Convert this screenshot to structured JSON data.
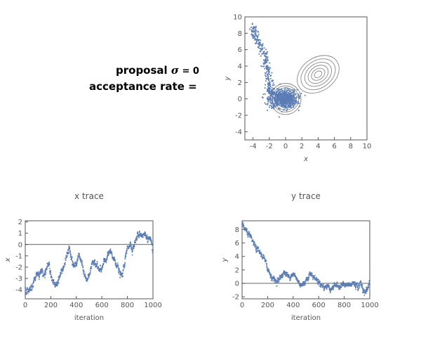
{
  "params": {
    "sigma_prefix": "proposal ",
    "sigma_symbol": "σ",
    "sigma_rest": " = 0",
    "acceptance": "acceptance rate ="
  },
  "colors": {
    "points": "#5b7db5",
    "contour": "#8a8a8a",
    "axis": "#555555",
    "ref_line": "#333333"
  },
  "chart_data": [
    {
      "id": "scatter",
      "type": "scatter",
      "title": "",
      "xlabel": "x",
      "ylabel": "y",
      "xlim": [
        -5,
        10
      ],
      "ylim": [
        -5,
        10
      ],
      "xticks": [
        -4,
        -2,
        0,
        2,
        4,
        6,
        8,
        10
      ],
      "yticks": [
        -4,
        -2,
        0,
        2,
        4,
        6,
        8,
        10
      ],
      "contours": [
        {
          "cx": 0,
          "cy": 0,
          "rx": [
            0.35,
            0.6,
            0.85,
            1.1,
            1.35,
            1.6,
            1.9
          ]
        },
        {
          "cx": 4,
          "cy": 3,
          "rx": [
            0.5,
            0.9,
            1.35,
            1.8,
            2.3,
            2.8
          ],
          "rotate": -35,
          "ratio": 0.72
        }
      ],
      "points_description": "chain starts near (-4, 9), descends along x≈-3..-2, then concentrates around (-1..1, -1..1)",
      "path_anchors": [
        {
          "iter": 0,
          "x": -4.0,
          "y": 8.8
        },
        {
          "iter": 60,
          "x": -3.6,
          "y": 7.3
        },
        {
          "iter": 120,
          "x": -2.6,
          "y": 5.5
        },
        {
          "iter": 180,
          "x": -2.2,
          "y": 3.5
        },
        {
          "iter": 230,
          "x": -2.0,
          "y": 1.5
        },
        {
          "iter": 300,
          "x": -1.5,
          "y": 0.3
        },
        {
          "iter": 1000,
          "x": 0.0,
          "y": 0.0
        }
      ]
    },
    {
      "id": "x-trace",
      "type": "scatter",
      "title": "x trace",
      "xlabel": "iteration",
      "ylabel": "x",
      "xlim": [
        0,
        1000
      ],
      "ylim": [
        -4.8,
        2.1
      ],
      "xticks": [
        0,
        200,
        400,
        600,
        800,
        1000
      ],
      "yticks": [
        -4,
        -3,
        -2,
        -1,
        0,
        1,
        2
      ],
      "hline": 0,
      "anchors": [
        [
          0,
          -3.9
        ],
        [
          30,
          -4.2
        ],
        [
          50,
          -3.8
        ],
        [
          70,
          -3.2
        ],
        [
          90,
          -2.5
        ],
        [
          110,
          -2.6
        ],
        [
          130,
          -2.3
        ],
        [
          150,
          -2.6
        ],
        [
          170,
          -2.0
        ],
        [
          190,
          -1.8
        ],
        [
          210,
          -3.2
        ],
        [
          230,
          -3.6
        ],
        [
          250,
          -3.4
        ],
        [
          270,
          -2.8
        ],
        [
          290,
          -2.2
        ],
        [
          310,
          -1.7
        ],
        [
          330,
          -0.8
        ],
        [
          345,
          -0.3
        ],
        [
          360,
          -1.2
        ],
        [
          380,
          -2.0
        ],
        [
          400,
          -1.7
        ],
        [
          420,
          -0.9
        ],
        [
          440,
          -1.6
        ],
        [
          460,
          -2.5
        ],
        [
          480,
          -3.2
        ],
        [
          500,
          -2.6
        ],
        [
          520,
          -2.0
        ],
        [
          540,
          -1.4
        ],
        [
          560,
          -1.8
        ],
        [
          580,
          -2.3
        ],
        [
          600,
          -2.2
        ],
        [
          620,
          -1.5
        ],
        [
          640,
          -1.2
        ],
        [
          660,
          -0.6
        ],
        [
          680,
          -1.0
        ],
        [
          700,
          -1.4
        ],
        [
          720,
          -1.8
        ],
        [
          740,
          -2.6
        ],
        [
          760,
          -2.8
        ],
        [
          780,
          -1.5
        ],
        [
          800,
          -0.3
        ],
        [
          820,
          0.1
        ],
        [
          840,
          -0.4
        ],
        [
          860,
          0.2
        ],
        [
          880,
          0.8
        ],
        [
          900,
          1.0
        ],
        [
          920,
          0.8
        ],
        [
          940,
          0.9
        ],
        [
          960,
          0.6
        ],
        [
          980,
          0.3
        ],
        [
          1000,
          -0.6
        ]
      ]
    },
    {
      "id": "y-trace",
      "type": "scatter",
      "title": "y trace",
      "xlabel": "iteration",
      "ylabel": "y",
      "xlim": [
        0,
        1000
      ],
      "ylim": [
        -2.3,
        9.3
      ],
      "xticks": [
        0,
        200,
        400,
        600,
        800,
        1000
      ],
      "yticks": [
        -2,
        0,
        2,
        4,
        6,
        8
      ],
      "hline": 0,
      "anchors": [
        [
          0,
          8.8
        ],
        [
          30,
          7.8
        ],
        [
          60,
          7.0
        ],
        [
          90,
          6.0
        ],
        [
          110,
          5.2
        ],
        [
          130,
          4.8
        ],
        [
          150,
          4.3
        ],
        [
          170,
          3.8
        ],
        [
          190,
          2.8
        ],
        [
          210,
          1.8
        ],
        [
          230,
          1.0
        ],
        [
          250,
          0.6
        ],
        [
          270,
          0.3
        ],
        [
          290,
          0.5
        ],
        [
          310,
          1.2
        ],
        [
          330,
          1.6
        ],
        [
          350,
          1.3
        ],
        [
          370,
          0.9
        ],
        [
          390,
          1.4
        ],
        [
          410,
          1.2
        ],
        [
          430,
          0.6
        ],
        [
          450,
          0.0
        ],
        [
          470,
          -0.3
        ],
        [
          490,
          0.1
        ],
        [
          510,
          0.8
        ],
        [
          530,
          1.4
        ],
        [
          550,
          1.2
        ],
        [
          570,
          0.8
        ],
        [
          590,
          0.4
        ],
        [
          610,
          0.1
        ],
        [
          630,
          -0.4
        ],
        [
          650,
          -0.6
        ],
        [
          670,
          -0.3
        ],
        [
          690,
          -0.8
        ],
        [
          710,
          -0.6
        ],
        [
          730,
          -0.2
        ],
        [
          750,
          -0.5
        ],
        [
          770,
          -0.3
        ],
        [
          790,
          -0.1
        ],
        [
          810,
          -0.4
        ],
        [
          830,
          -0.2
        ],
        [
          850,
          -0.3
        ],
        [
          870,
          0.1
        ],
        [
          890,
          -0.2
        ],
        [
          910,
          -0.5
        ],
        [
          930,
          0.0
        ],
        [
          950,
          -1.0
        ],
        [
          970,
          -1.3
        ],
        [
          990,
          -0.4
        ],
        [
          1000,
          0.3
        ]
      ]
    }
  ]
}
